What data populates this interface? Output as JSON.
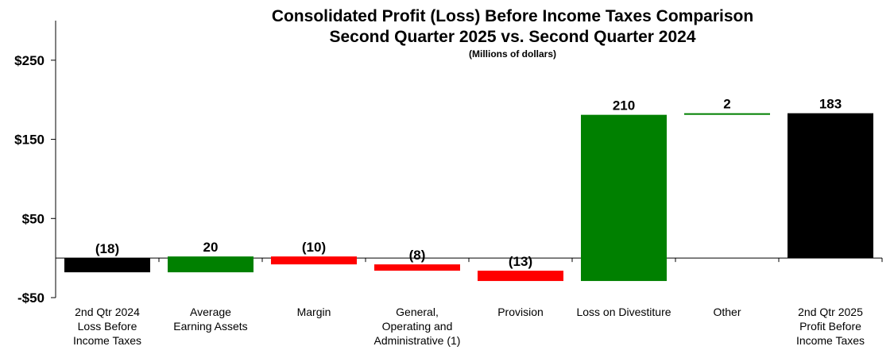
{
  "chart_data": {
    "type": "bar",
    "subtype": "waterfall",
    "title": "Consolidated Profit (Loss) Before Income Taxes Comparison",
    "subtitle": "Second Quarter 2025 vs. Second Quarter 2024",
    "units_note": "(Millions of dollars)",
    "xlabel": "",
    "ylabel": "",
    "ylim": [
      -50,
      300
    ],
    "y_ticks": [
      {
        "value": 250,
        "label": "$250"
      },
      {
        "value": 150,
        "label": "$150"
      },
      {
        "value": 50,
        "label": "$50"
      },
      {
        "value": -50,
        "label": "-$50"
      }
    ],
    "categories": [
      [
        "2nd Qtr 2024",
        "Loss Before",
        "Income Taxes"
      ],
      [
        "Average",
        "Earning Assets"
      ],
      [
        "Margin"
      ],
      [
        "General,",
        "Operating and",
        "Administrative (1)"
      ],
      [
        "Provision"
      ],
      [
        "Loss on Divestiture"
      ],
      [
        "Other"
      ],
      [
        "2nd Qtr 2025",
        "Profit Before",
        "Income Taxes"
      ]
    ],
    "bars": [
      {
        "label": "(18)",
        "start": 0,
        "end": -18,
        "color": "#000000"
      },
      {
        "label": "20",
        "start": -18,
        "end": 2,
        "color": "#008000"
      },
      {
        "label": "(10)",
        "start": 2,
        "end": -8,
        "color": "#ff0000"
      },
      {
        "label": "(8)",
        "start": -8,
        "end": -16,
        "color": "#ff0000"
      },
      {
        "label": "(13)",
        "start": -16,
        "end": -29,
        "color": "#ff0000"
      },
      {
        "label": "210",
        "start": -29,
        "end": 181,
        "color": "#008000"
      },
      {
        "label": "2",
        "start": 181,
        "end": 183,
        "color": "#008000"
      },
      {
        "label": "183",
        "start": 0,
        "end": 183,
        "color": "#000000"
      }
    ],
    "grid": false,
    "legend": "none"
  }
}
